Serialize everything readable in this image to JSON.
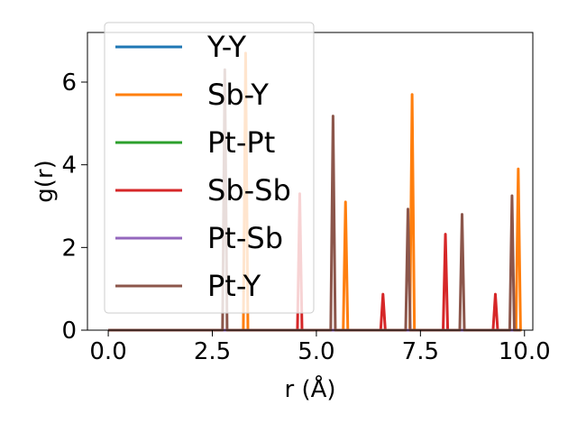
{
  "chart_data": {
    "type": "line",
    "xlabel": "r (Å)",
    "ylabel": "g(r)",
    "xlim": [
      -0.5,
      10.2
    ],
    "ylim": [
      0,
      7.2
    ],
    "xticks": [
      0.0,
      2.5,
      5.0,
      7.5,
      10.0
    ],
    "xtick_labels": [
      "0.0",
      "2.5",
      "5.0",
      "7.5",
      "10.0"
    ],
    "yticks": [
      0,
      2,
      4,
      6
    ],
    "ytick_labels": [
      "0",
      "2",
      "4",
      "6"
    ],
    "grid": false,
    "legend_position": "upper-left",
    "series": [
      {
        "name": "Y-Y",
        "color": "#1f77b4",
        "peaks": []
      },
      {
        "name": "Sb-Y",
        "color": "#ff7f0e",
        "peaks": [
          [
            3.3,
            6.7
          ],
          [
            5.7,
            3.1
          ],
          [
            7.3,
            5.7
          ],
          [
            9.85,
            3.9
          ]
        ]
      },
      {
        "name": "Pt-Pt",
        "color": "#2ca02c",
        "peaks": []
      },
      {
        "name": "Sb-Sb",
        "color": "#d62728",
        "peaks": [
          [
            4.6,
            3.3
          ],
          [
            6.6,
            0.87
          ],
          [
            8.1,
            2.32
          ],
          [
            9.3,
            0.87
          ]
        ]
      },
      {
        "name": "Pt-Sb",
        "color": "#9467bd",
        "peaks": []
      },
      {
        "name": "Pt-Y",
        "color": "#8c564b",
        "peaks": [
          [
            2.8,
            6.3
          ],
          [
            5.4,
            5.18
          ],
          [
            7.2,
            2.93
          ],
          [
            8.5,
            2.8
          ],
          [
            9.7,
            3.25
          ]
        ]
      }
    ]
  }
}
